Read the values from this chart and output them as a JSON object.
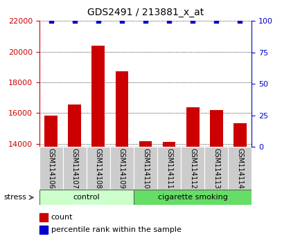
{
  "title": "GDS2491 / 213881_x_at",
  "samples": [
    "GSM114106",
    "GSM114107",
    "GSM114108",
    "GSM114109",
    "GSM114110",
    "GSM114111",
    "GSM114112",
    "GSM114113",
    "GSM114114"
  ],
  "counts": [
    15850,
    16550,
    20400,
    18700,
    14200,
    14150,
    16400,
    16200,
    15350
  ],
  "percentile_ranks": [
    100,
    100,
    100,
    100,
    100,
    100,
    100,
    100,
    100
  ],
  "groups": [
    {
      "label": "control",
      "indices": [
        0,
        1,
        2,
        3
      ],
      "color_light": "#ccffcc",
      "color_dark": "#66dd66"
    },
    {
      "label": "cigarette smoking",
      "indices": [
        4,
        5,
        6,
        7,
        8
      ],
      "color_light": "#66dd66",
      "color_dark": "#33bb33"
    }
  ],
  "stress_label": "stress",
  "ylim_left": [
    13800,
    22000
  ],
  "ylim_right": [
    0,
    100
  ],
  "yticks_left": [
    14000,
    16000,
    18000,
    20000,
    22000
  ],
  "yticks_right": [
    0,
    25,
    50,
    75,
    100
  ],
  "bar_color": "#cc0000",
  "percentile_color": "#0000cc",
  "tick_area_color": "#cccccc",
  "grid_color": "#888888",
  "title_fontsize": 10,
  "axis_fontsize": 8,
  "label_fontsize": 7,
  "group_fontsize": 8,
  "legend_fontsize": 8,
  "bar_width": 0.55
}
